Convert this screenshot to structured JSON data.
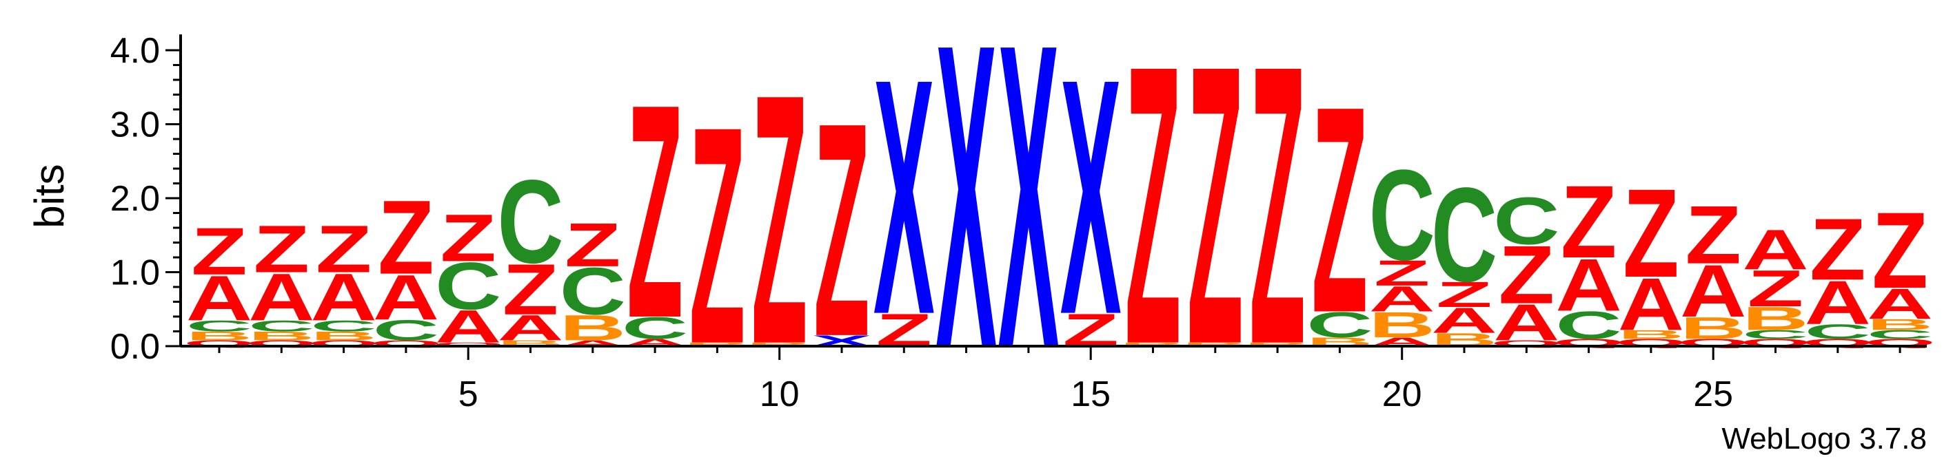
{
  "chart_data": {
    "type": "sequence-logo",
    "ylabel": "bits",
    "ylim": [
      0,
      4.0
    ],
    "y_ticks": [
      0.0,
      1.0,
      2.0,
      3.0,
      4.0
    ],
    "y_tick_labels": [
      "0.0",
      "1.0",
      "2.0",
      "3.0",
      "4.0"
    ],
    "x_ticks": [
      5,
      10,
      15,
      20,
      25
    ],
    "x_tick_labels": [
      "5",
      "10",
      "15",
      "20",
      "25"
    ],
    "positions": [
      1,
      2,
      3,
      4,
      5,
      6,
      7,
      8,
      9,
      10,
      11,
      12,
      13,
      14,
      15,
      16,
      17,
      18,
      19,
      20,
      21,
      22,
      23,
      24,
      25,
      26,
      27,
      28
    ],
    "colors": {
      "Z": "#ff0000",
      "A": "#ff0000",
      "C": "#228b22",
      "B": "#ff8c00",
      "X": "#0000ff",
      "Q": "#ff0000"
    },
    "stacks": [
      [
        {
          "l": "Q",
          "h": 0.08
        },
        {
          "l": "B",
          "h": 0.12
        },
        {
          "l": "C",
          "h": 0.15
        },
        {
          "l": "A",
          "h": 0.62
        },
        {
          "l": "Z",
          "h": 0.65
        }
      ],
      [
        {
          "l": "Q",
          "h": 0.08
        },
        {
          "l": "B",
          "h": 0.12
        },
        {
          "l": "C",
          "h": 0.15
        },
        {
          "l": "A",
          "h": 0.65
        },
        {
          "l": "Z",
          "h": 0.65
        }
      ],
      [
        {
          "l": "Q",
          "h": 0.08
        },
        {
          "l": "B",
          "h": 0.12
        },
        {
          "l": "C",
          "h": 0.15
        },
        {
          "l": "A",
          "h": 0.65
        },
        {
          "l": "Z",
          "h": 0.65
        }
      ],
      [
        {
          "l": "Q",
          "h": 0.08
        },
        {
          "l": "C",
          "h": 0.28
        },
        {
          "l": "A",
          "h": 0.62
        },
        {
          "l": "Z",
          "h": 1.02
        }
      ],
      [
        {
          "l": "Q",
          "h": 0.05
        },
        {
          "l": "A",
          "h": 0.45
        },
        {
          "l": "C",
          "h": 0.65
        },
        {
          "l": "Z",
          "h": 0.65
        }
      ],
      [
        {
          "l": "B",
          "h": 0.08
        },
        {
          "l": "A",
          "h": 0.35
        },
        {
          "l": "Z",
          "h": 0.7
        },
        {
          "l": "C",
          "h": 1.15
        }
      ],
      [
        {
          "l": "A",
          "h": 0.08
        },
        {
          "l": "B",
          "h": 0.35
        },
        {
          "l": "C",
          "h": 0.65
        },
        {
          "l": "Z",
          "h": 0.6
        }
      ],
      [
        {
          "l": "A",
          "h": 0.1
        },
        {
          "l": "C",
          "h": 0.3
        },
        {
          "l": "Z",
          "h": 2.95
        }
      ],
      [
        {
          "l": "B",
          "h": 0.05
        },
        {
          "l": "Z",
          "h": 3.0
        }
      ],
      [
        {
          "l": "B",
          "h": 0.05
        },
        {
          "l": "Z",
          "h": 3.45
        }
      ],
      [
        {
          "l": "X",
          "h": 0.15
        },
        {
          "l": "Z",
          "h": 2.95
        }
      ],
      [
        {
          "l": "Z",
          "h": 0.45
        },
        {
          "l": "X",
          "h": 3.25
        }
      ],
      [
        {
          "l": "X",
          "h": 4.2
        }
      ],
      [
        {
          "l": "X",
          "h": 4.2
        }
      ],
      [
        {
          "l": "Z",
          "h": 0.45
        },
        {
          "l": "X",
          "h": 3.25
        }
      ],
      [
        {
          "l": "B",
          "h": 0.05
        },
        {
          "l": "Z",
          "h": 3.85
        }
      ],
      [
        {
          "l": "B",
          "h": 0.05
        },
        {
          "l": "Z",
          "h": 3.85
        }
      ],
      [
        {
          "l": "B",
          "h": 0.05
        },
        {
          "l": "Z",
          "h": 3.85
        }
      ],
      [
        {
          "l": "B",
          "h": 0.12
        },
        {
          "l": "C",
          "h": 0.35
        },
        {
          "l": "Z",
          "h": 2.85
        }
      ],
      [
        {
          "l": "A",
          "h": 0.12
        },
        {
          "l": "B",
          "h": 0.35
        },
        {
          "l": "A",
          "h": 0.35
        },
        {
          "l": "Z",
          "h": 0.35
        },
        {
          "l": "C",
          "h": 1.25
        }
      ],
      [
        {
          "l": "B",
          "h": 0.18
        },
        {
          "l": "A",
          "h": 0.35
        },
        {
          "l": "Z",
          "h": 0.35
        },
        {
          "l": "C",
          "h": 1.3
        }
      ],
      [
        {
          "l": "Q",
          "h": 0.08
        },
        {
          "l": "A",
          "h": 0.5
        },
        {
          "l": "Z",
          "h": 0.8
        },
        {
          "l": "C",
          "h": 0.65
        }
      ],
      [
        {
          "l": "Q",
          "h": 0.1
        },
        {
          "l": "C",
          "h": 0.38
        },
        {
          "l": "A",
          "h": 0.72
        },
        {
          "l": "Z",
          "h": 1.0
        }
      ],
      [
        {
          "l": "Q",
          "h": 0.1
        },
        {
          "l": "B",
          "h": 0.12
        },
        {
          "l": "A",
          "h": 0.72
        },
        {
          "l": "Z",
          "h": 1.22
        }
      ],
      [
        {
          "l": "Q",
          "h": 0.1
        },
        {
          "l": "B",
          "h": 0.3
        },
        {
          "l": "A",
          "h": 0.72
        },
        {
          "l": "Z",
          "h": 0.8
        }
      ],
      [
        {
          "l": "Q",
          "h": 0.1
        },
        {
          "l": "C",
          "h": 0.12
        },
        {
          "l": "B",
          "h": 0.32
        },
        {
          "l": "Z",
          "h": 0.5
        },
        {
          "l": "A",
          "h": 0.55
        }
      ],
      [
        {
          "l": "Q",
          "h": 0.1
        },
        {
          "l": "C",
          "h": 0.2
        },
        {
          "l": "A",
          "h": 0.6
        },
        {
          "l": "Z",
          "h": 0.85
        }
      ],
      [
        {
          "l": "Q",
          "h": 0.1
        },
        {
          "l": "C",
          "h": 0.12
        },
        {
          "l": "B",
          "h": 0.15
        },
        {
          "l": "A",
          "h": 0.42
        },
        {
          "l": "Z",
          "h": 1.05
        }
      ]
    ]
  },
  "credit": "WebLogo 3.7.8"
}
